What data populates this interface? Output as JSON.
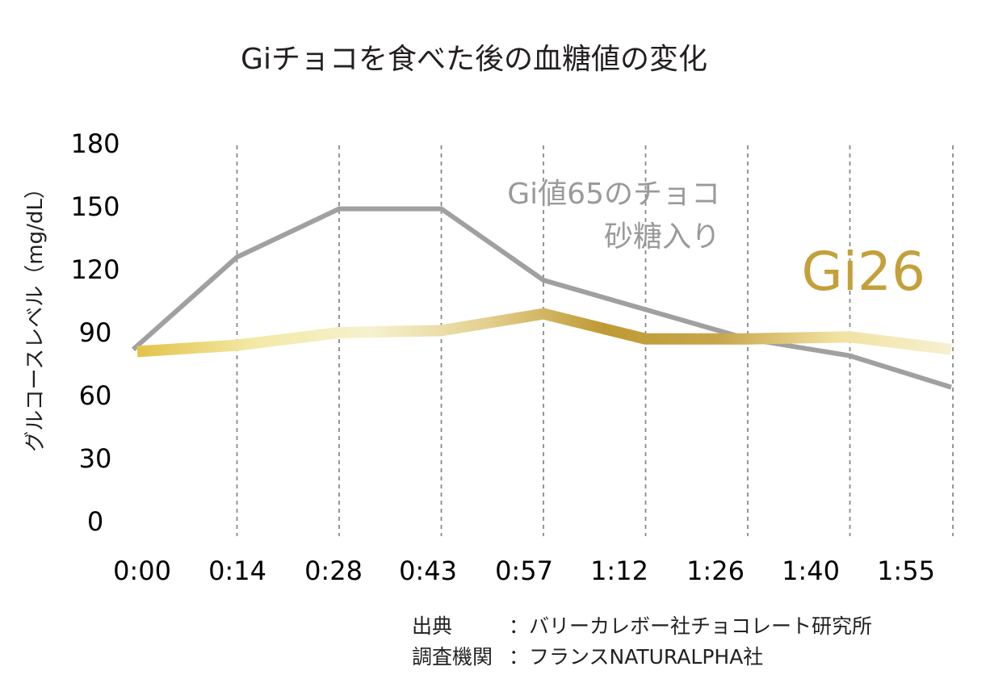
{
  "chart_data": {
    "type": "line",
    "title": "Giチョコを食べた後の血糖値の変化",
    "ylabel": "グルコースレベル（mg/dL）",
    "xlabel": "",
    "ylim": [
      0,
      180
    ],
    "yticks": [
      "180",
      "150",
      "120",
      "90",
      "60",
      "30",
      "0"
    ],
    "categories": [
      "0:00",
      "0:14",
      "0:28",
      "0:43",
      "0:57",
      "1:12",
      "1:26",
      "1:40",
      "1:55"
    ],
    "grid": "vertical dashed",
    "series": [
      {
        "name": "Gi値65のチョコ 砂糖入り",
        "label_lines": [
          "Gi値65のチョコ",
          "砂糖入り"
        ],
        "color": "#a0a0a0",
        "points": [
          {
            "x": 0.0,
            "y": 82
          },
          {
            "x": 1.0,
            "y": 126
          },
          {
            "x": 2.0,
            "y": 149
          },
          {
            "x": 3.0,
            "y": 149
          },
          {
            "x": 4.0,
            "y": 115
          },
          {
            "x": 5.0,
            "y": 101
          },
          {
            "x": 6.0,
            "y": 87
          },
          {
            "x": 7.0,
            "y": 79
          },
          {
            "x": 8.0,
            "y": 64
          }
        ]
      },
      {
        "name": "Gi26",
        "label": "Gi26",
        "color": "#c4a03a",
        "points": [
          {
            "x": 0.0,
            "y": 81
          },
          {
            "x": 1.0,
            "y": 84
          },
          {
            "x": 2.0,
            "y": 90
          },
          {
            "x": 3.0,
            "y": 91
          },
          {
            "x": 4.0,
            "y": 99
          },
          {
            "x": 5.0,
            "y": 87
          },
          {
            "x": 6.0,
            "y": 87
          },
          {
            "x": 7.0,
            "y": 88
          },
          {
            "x": 8.0,
            "y": 82
          }
        ]
      }
    ]
  },
  "colors": {
    "gold_stops": [
      "#e3c24a",
      "#f3e9a6",
      "#f6f1cf",
      "#e3d08e",
      "#bf9a34",
      "#c7a64c",
      "#f1e2a0",
      "#f6f0d2"
    ]
  },
  "source": {
    "line1_label": "出典",
    "line1_value": "：バリーカレボー社チョコレート研究所",
    "line2_label": "調査機関",
    "line2_value": "：フランスNATURALPHA社"
  }
}
